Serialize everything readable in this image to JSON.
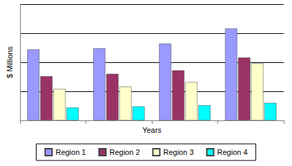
{
  "chart_data": {
    "type": "bar",
    "x_label": "Years",
    "y_label": "$ Millions",
    "categories": [
      null,
      null,
      null,
      null
    ],
    "series": [
      {
        "name": "Region 1",
        "color": "#9999FF",
        "values": [
          61,
          62,
          66,
          79
        ]
      },
      {
        "name": "Region 2",
        "color": "#993366",
        "values": [
          38,
          40,
          43,
          54
        ]
      },
      {
        "name": "Region 3",
        "color": "#FFFFCC",
        "values": [
          27,
          29,
          33,
          49
        ]
      },
      {
        "name": "Region 4",
        "color": "#00FFFF",
        "values": [
          11,
          12,
          13,
          15
        ]
      }
    ],
    "ylim": [
      0,
      100
    ],
    "yticks": [
      0,
      25,
      50,
      75,
      100
    ],
    "grid": true,
    "legend": "bottom",
    "tick_labels": false
  }
}
